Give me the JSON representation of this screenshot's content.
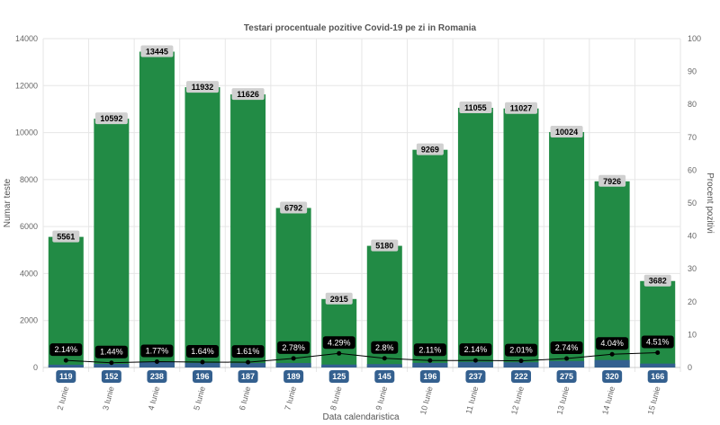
{
  "chart_data": {
    "type": "bar",
    "title": "Testari procentuale pozitive Covid-19 pe zi in Romania",
    "xlabel": "Data calendaristica",
    "ylabel": "Numar teste",
    "y2label": "Procent pozitivi",
    "ylim": [
      0,
      14000
    ],
    "y2lim": [
      0,
      100
    ],
    "yticks": [
      0,
      2000,
      4000,
      6000,
      8000,
      10000,
      12000,
      14000
    ],
    "y2ticks": [
      0,
      10,
      20,
      30,
      40,
      50,
      60,
      70,
      80,
      90,
      100
    ],
    "grid": true,
    "categories": [
      "2 Iunie",
      "3 Iunie",
      "4 Iunie",
      "5 Iunie",
      "6 Iunie",
      "7 Iunie",
      "8 Iunie",
      "9 Iunie",
      "10 Iunie",
      "11 Iunie",
      "12 Iunie",
      "13 Iunie",
      "14 Iunie",
      "15 Iunie"
    ],
    "series": [
      {
        "type": "bar",
        "axis": "left",
        "color": "#228b45",
        "values": [
          5561,
          10592,
          13445,
          11932,
          11626,
          6792,
          2915,
          5180,
          9269,
          11055,
          11027,
          10024,
          7926,
          3682
        ]
      },
      {
        "type": "bar",
        "axis": "left",
        "color": "#34608f",
        "values": [
          119,
          152,
          238,
          196,
          187,
          189,
          125,
          145,
          196,
          237,
          222,
          275,
          320,
          166
        ]
      },
      {
        "type": "line",
        "axis": "right",
        "color": "#000000",
        "values": [
          2.14,
          1.44,
          1.77,
          1.64,
          1.61,
          2.78,
          4.29,
          2.8,
          2.11,
          2.14,
          2.01,
          2.74,
          4.04,
          4.51
        ],
        "labels": [
          "2.14%",
          "1.44%",
          "1.77%",
          "1.64%",
          "1.61%",
          "2.78%",
          "4.29%",
          "2.8%",
          "2.11%",
          "2.14%",
          "2.01%",
          "2.74%",
          "4.04%",
          "4.51%"
        ]
      }
    ]
  }
}
